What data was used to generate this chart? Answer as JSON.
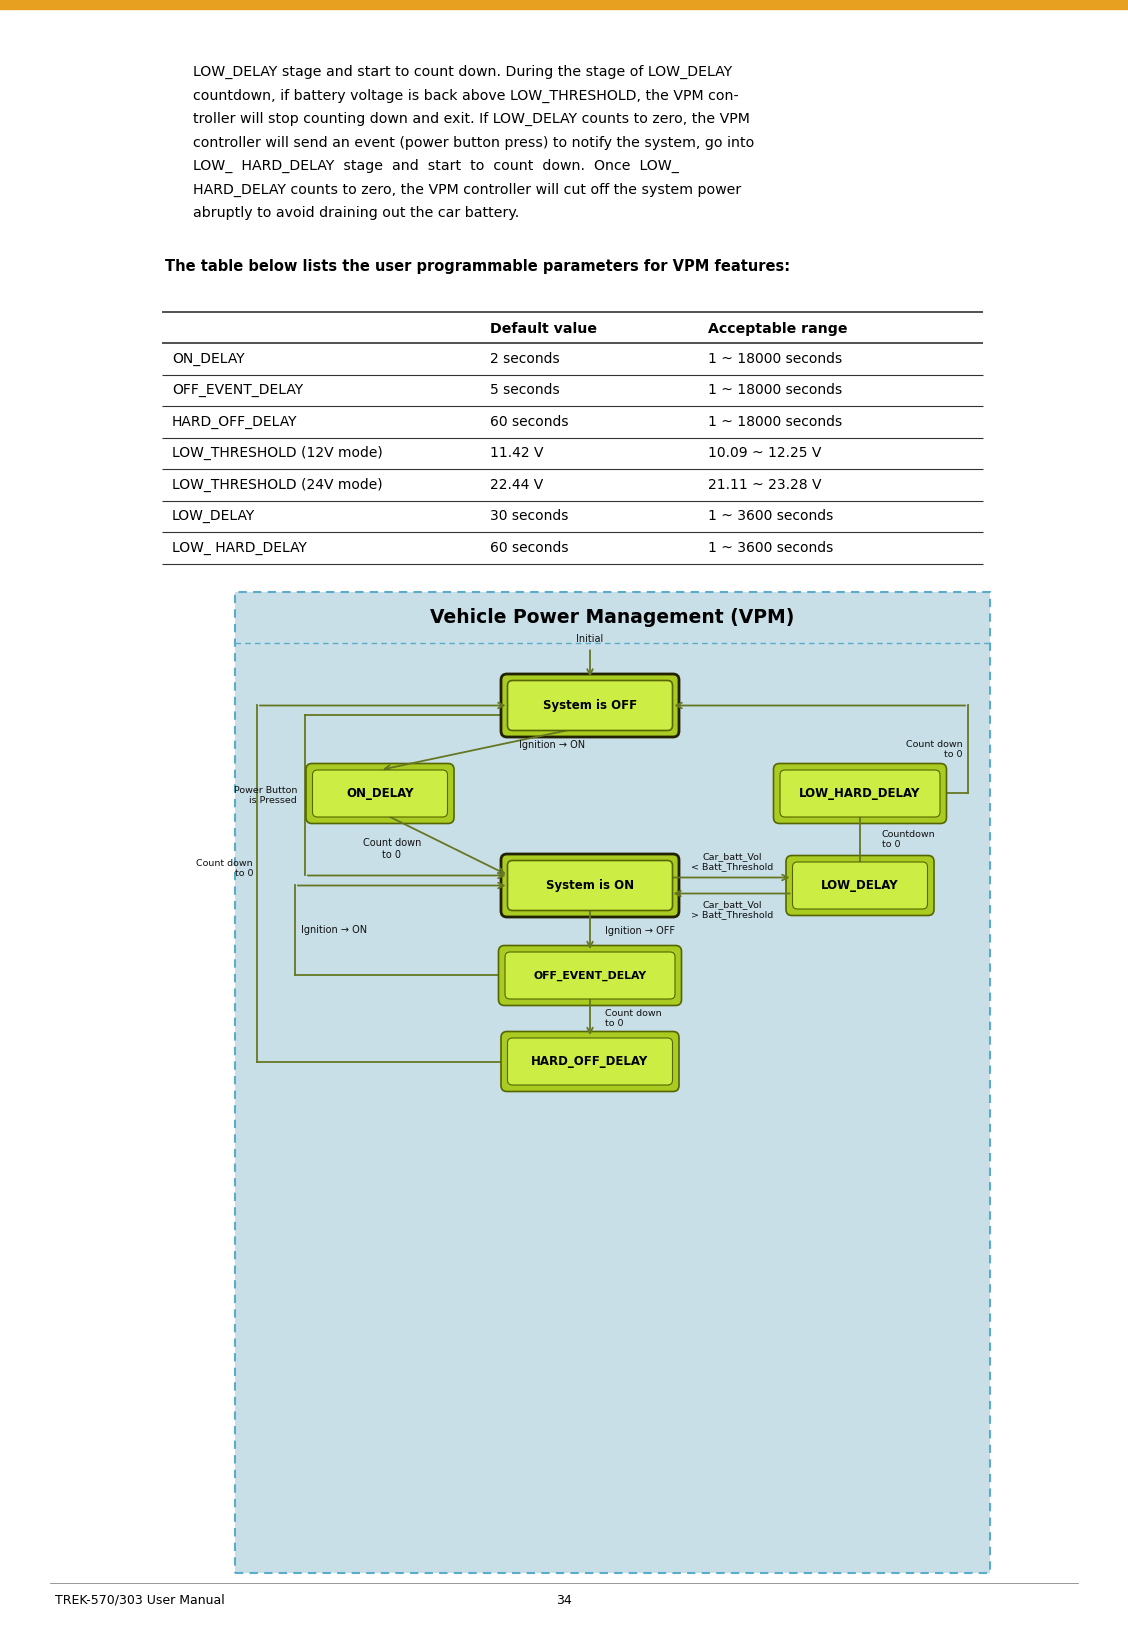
{
  "page_width": 11.28,
  "page_height": 16.25,
  "background_color": "#ffffff",
  "orange_bar_color": "#E8A020",
  "body_lines": [
    "LOW_DELAY stage and start to count down. During the stage of LOW_DELAY",
    "countdown, if battery voltage is back above LOW_THRESHOLD, the VPM con-",
    "troller will stop counting down and exit. If LOW_DELAY counts to zero, the VPM",
    "controller will send an event (power button press) to notify the system, go into",
    "LOW_  HARD_DELAY  stage  and  start  to  count  down.  Once  LOW_",
    "HARD_DELAY counts to zero, the VPM controller will cut off the system power",
    "abruptly to avoid draining out the car battery."
  ],
  "intro_text": "The table below lists the user programmable parameters for VPM features:",
  "table_headers": [
    "",
    "Default value",
    "Acceptable range"
  ],
  "table_rows": [
    [
      "ON_DELAY",
      "2 seconds",
      "1 ~ 18000 seconds"
    ],
    [
      "OFF_EVENT_DELAY",
      "5 seconds",
      "1 ~ 18000 seconds"
    ],
    [
      "HARD_OFF_DELAY",
      "60 seconds",
      "1 ~ 18000 seconds"
    ],
    [
      "LOW_THRESHOLD (12V mode)",
      "11.42 V",
      "10.09 ~ 12.25 V"
    ],
    [
      "LOW_THRESHOLD (24V mode)",
      "22.44 V",
      "21.11 ~ 23.28 V"
    ],
    [
      "LOW_DELAY",
      "30 seconds",
      "1 ~ 3600 seconds"
    ],
    [
      "LOW_ HARD_DELAY",
      "60 seconds",
      "1 ~ 3600 seconds"
    ]
  ],
  "vpm_title": "Vehicle Power Management (VPM)",
  "vpm_bg_color": "#C8DFE8",
  "vpm_border_color": "#5AACCB",
  "vpm_title_bg": "#A8C8D8",
  "node_fill_light": "#CCEE44",
  "node_fill_grad": "#AACC22",
  "node_border": "#556600",
  "node_border_thick": "#222200",
  "arrow_color": "#667722",
  "footer_left": "TREK-570/303 User Manual",
  "footer_page": "34"
}
